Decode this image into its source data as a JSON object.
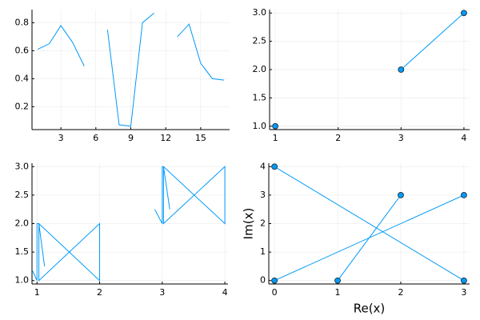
{
  "chart_data": [
    {
      "type": "line",
      "color": "#009af9",
      "grid": true,
      "x": [
        1,
        2,
        3,
        4,
        5,
        6,
        7,
        8,
        9,
        10,
        11,
        12,
        13,
        14,
        15,
        16,
        17
      ],
      "y": [
        0.61,
        0.65,
        0.78,
        0.66,
        0.49,
        null,
        0.75,
        0.07,
        0.06,
        0.8,
        0.87,
        null,
        0.7,
        0.79,
        0.51,
        0.4,
        0.39
      ],
      "xlim": [
        0.52,
        17.48
      ],
      "xticks": [
        3,
        6,
        9,
        12,
        15
      ],
      "ylim": [
        0.036,
        0.894
      ],
      "yticks": [
        0.2,
        0.4,
        0.6,
        0.8
      ]
    },
    {
      "type": "line",
      "markers": true,
      "color": "#009af9",
      "grid": true,
      "x": [
        1,
        2,
        3,
        4
      ],
      "y": [
        1,
        null,
        2,
        3
      ],
      "xlim": [
        0.91,
        4.09
      ],
      "xticks": [
        1,
        2,
        3,
        4
      ],
      "ylim": [
        0.94,
        3.06
      ],
      "yticks": [
        {
          "value": 1,
          "label": "1.0"
        },
        {
          "value": 1.5,
          "label": "1.5"
        },
        {
          "value": 2,
          "label": "2.0"
        },
        {
          "value": 2.5,
          "label": "2.5"
        },
        {
          "value": 3,
          "label": "3.0"
        }
      ]
    },
    {
      "type": "line",
      "color": "#009af9",
      "grid": true,
      "x": [
        0.93,
        1,
        1,
        1.03,
        2,
        2,
        1.03,
        1.03,
        1.12,
        null,
        2.88,
        3,
        3,
        3.02,
        4,
        4,
        3.02,
        3.02,
        3.12
      ],
      "y": [
        1.17,
        1,
        2,
        2,
        1,
        2,
        1,
        2,
        1.25,
        null,
        2.25,
        2,
        3,
        3,
        2,
        3,
        2,
        3,
        2.25
      ],
      "xlim": [
        0.92,
        4.05
      ],
      "xticks": [
        1,
        2,
        3,
        4
      ],
      "ylim": [
        0.94,
        3.06
      ],
      "yticks": [
        {
          "value": 1,
          "label": "1.0"
        },
        {
          "value": 1.5,
          "label": "1.5"
        },
        {
          "value": 2,
          "label": "2.0"
        },
        {
          "value": 2.5,
          "label": "2.5"
        },
        {
          "value": 3,
          "label": "3.0"
        }
      ]
    },
    {
      "type": "line",
      "markers": true,
      "color": "#009af9",
      "grid": true,
      "xlabel": "Re(x)",
      "ylabel": "Im(x)",
      "x": [
        0,
        3,
        null,
        1,
        2,
        null,
        0,
        3
      ],
      "y": [
        0,
        3,
        null,
        0,
        3,
        null,
        4,
        0
      ],
      "xlim": [
        -0.09,
        3.09
      ],
      "xticks": [
        0,
        1,
        2,
        3
      ],
      "ylim": [
        -0.12,
        4.12
      ],
      "yticks": [
        0,
        1,
        2,
        3,
        4
      ]
    }
  ]
}
